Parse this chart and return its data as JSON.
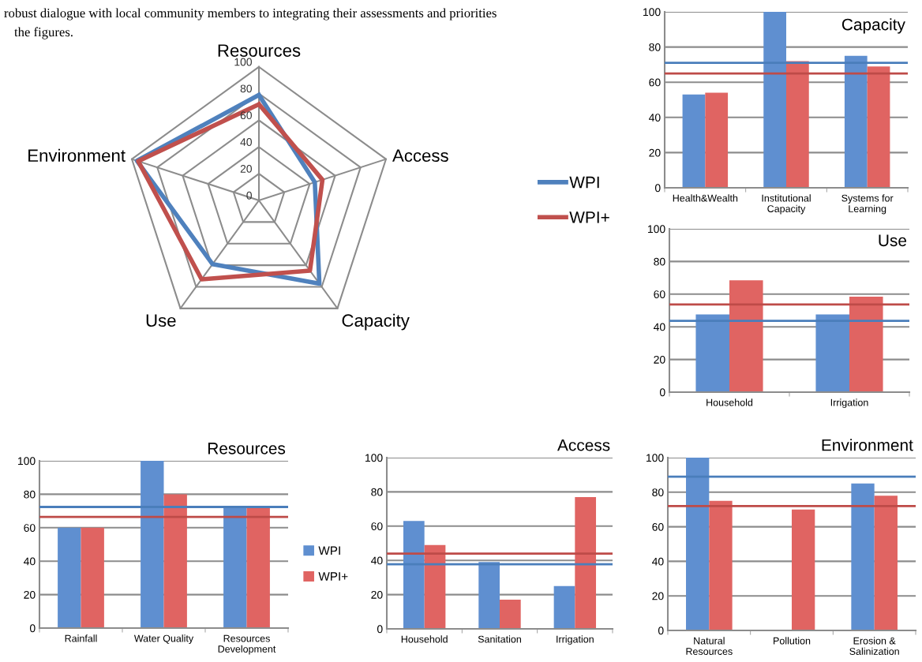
{
  "chart_data": [
    {
      "type": "radar",
      "categories": [
        "Resources",
        "Access",
        "Capacity",
        "Use",
        "Environment"
      ],
      "ylim": [
        0,
        100
      ],
      "yticks": [
        0,
        20,
        40,
        60,
        80,
        100
      ],
      "legend": "right",
      "annotations": [
        "robust dialogue with local community members to integrating their assessments and priorities",
        "the figures."
      ],
      "series": [
        {
          "name": "WPI",
          "color": "#4f81bd",
          "values": [
            79,
            44,
            77,
            59,
            96
          ]
        },
        {
          "name": "WPI+",
          "color": "#c0504d",
          "values": [
            72,
            50,
            65,
            73,
            95
          ]
        }
      ]
    },
    {
      "type": "bar",
      "title": "Capacity",
      "categories": [
        "Health&Wealth",
        "Institutional\nCapacity",
        "Systems for\nLearning"
      ],
      "ylim": [
        0,
        100
      ],
      "yticks": [
        0,
        20,
        40,
        60,
        80,
        100
      ],
      "grid": "y",
      "series": [
        {
          "color": "#5f8fd0",
          "values": [
            53,
            100,
            75
          ]
        },
        {
          "color": "#e06462",
          "values": [
            54,
            72,
            69
          ]
        }
      ],
      "ref_lines": [
        {
          "axis": "y",
          "value": 71,
          "color": "#4a7ebb"
        },
        {
          "axis": "y",
          "value": 65,
          "color": "#be4b48"
        }
      ]
    },
    {
      "type": "bar",
      "title": "Use",
      "categories": [
        "Household",
        "Irrigation"
      ],
      "ylim": [
        0,
        100
      ],
      "yticks": [
        0,
        20,
        40,
        60,
        80,
        100
      ],
      "grid": "y",
      "series": [
        {
          "color": "#5f8fd0",
          "values": [
            47.6,
            47.6
          ]
        },
        {
          "color": "#e06462",
          "values": [
            68.5,
            58.5
          ]
        }
      ],
      "ref_lines": [
        {
          "axis": "y",
          "value": 43.7,
          "color": "#4a7ebb"
        },
        {
          "axis": "y",
          "value": 53.7,
          "color": "#be4b48"
        }
      ]
    },
    {
      "type": "bar",
      "title": "Resources",
      "categories": [
        "Rainfall",
        "Water Quality",
        "Resources\nDevelopment"
      ],
      "ylim": [
        0,
        100
      ],
      "yticks": [
        0,
        20,
        40,
        60,
        80,
        100
      ],
      "grid": "y",
      "legend": "right",
      "series": [
        {
          "name": "WPI",
          "color": "#5f8fd0",
          "values": [
            60,
            100,
            72
          ]
        },
        {
          "name": "WPI+",
          "color": "#e06462",
          "values": [
            60,
            80,
            72
          ]
        }
      ],
      "ref_lines": [
        {
          "axis": "y",
          "value": 72.4,
          "color": "#4a7ebb"
        },
        {
          "axis": "y",
          "value": 66.4,
          "color": "#be4b48"
        }
      ]
    },
    {
      "type": "bar",
      "title": "Access",
      "categories": [
        "Household",
        "Sanitation",
        "Irrigation"
      ],
      "ylim": [
        0,
        100
      ],
      "yticks": [
        0,
        20,
        40,
        60,
        80,
        100
      ],
      "grid": "y",
      "series": [
        {
          "color": "#5f8fd0",
          "values": [
            63,
            39,
            25
          ]
        },
        {
          "color": "#e06462",
          "values": [
            49,
            17,
            77
          ]
        }
      ],
      "ref_lines": [
        {
          "axis": "y",
          "value": 37.7,
          "color": "#4a7ebb"
        },
        {
          "axis": "y",
          "value": 44,
          "color": "#be4b48"
        }
      ]
    },
    {
      "type": "bar",
      "title": "Environment",
      "categories": [
        "Natural\nResources",
        "Pollution",
        "Erosion &\nSalinization"
      ],
      "ylim": [
        0,
        100
      ],
      "yticks": [
        0,
        20,
        40,
        60,
        80,
        100
      ],
      "grid": "y",
      "series": [
        {
          "color": "#5f8fd0",
          "values": [
            100,
            0,
            85
          ]
        },
        {
          "color": "#e06462",
          "values": [
            75,
            70,
            78
          ]
        }
      ],
      "ref_lines": [
        {
          "axis": "y",
          "value": 89,
          "color": "#4a7ebb"
        },
        {
          "axis": "y",
          "value": 72,
          "color": "#be4b48"
        }
      ]
    }
  ]
}
